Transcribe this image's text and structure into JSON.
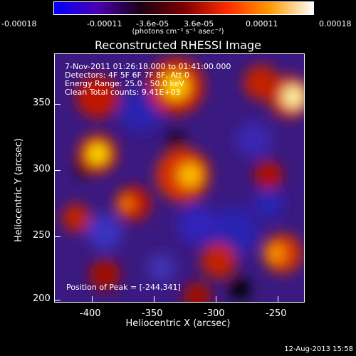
{
  "colorbar": {
    "tick_labels": [
      "-0.00018",
      "-0.00011",
      "-3.6e-05",
      "3.6e-05",
      "0.00011",
      "0.00018"
    ],
    "units_label": "(photons cm⁻² s⁻¹ asec⁻²)",
    "colors": [
      "#0000ff",
      "#4b00b0",
      "#1a0014",
      "#7a0000",
      "#ff2a00",
      "#ff9a00",
      "#ffffff"
    ]
  },
  "title": "Reconstructed RHESSI Image",
  "overlay": {
    "time_range": "7-Nov-2011 01:26:18.000 to 01:41:00.000",
    "detectors": "Detectors: 4F 5F 6F 7F 8F, Att 0",
    "energy": "Energy Range: 25.0 - 50.0 keV",
    "method": "Clean      Total counts: 9.41E+03",
    "peak": "Position of Peak = [-244,341]"
  },
  "axes": {
    "xlabel": "Heliocentric X (arcsec)",
    "ylabel": "Heliocentric Y (arcsec)",
    "x_ticks": [
      "-400",
      "-350",
      "-300",
      "-250"
    ],
    "y_ticks": [
      "200",
      "250",
      "300",
      "350"
    ]
  },
  "timestamp": "12-Aug-2013 15:58"
}
